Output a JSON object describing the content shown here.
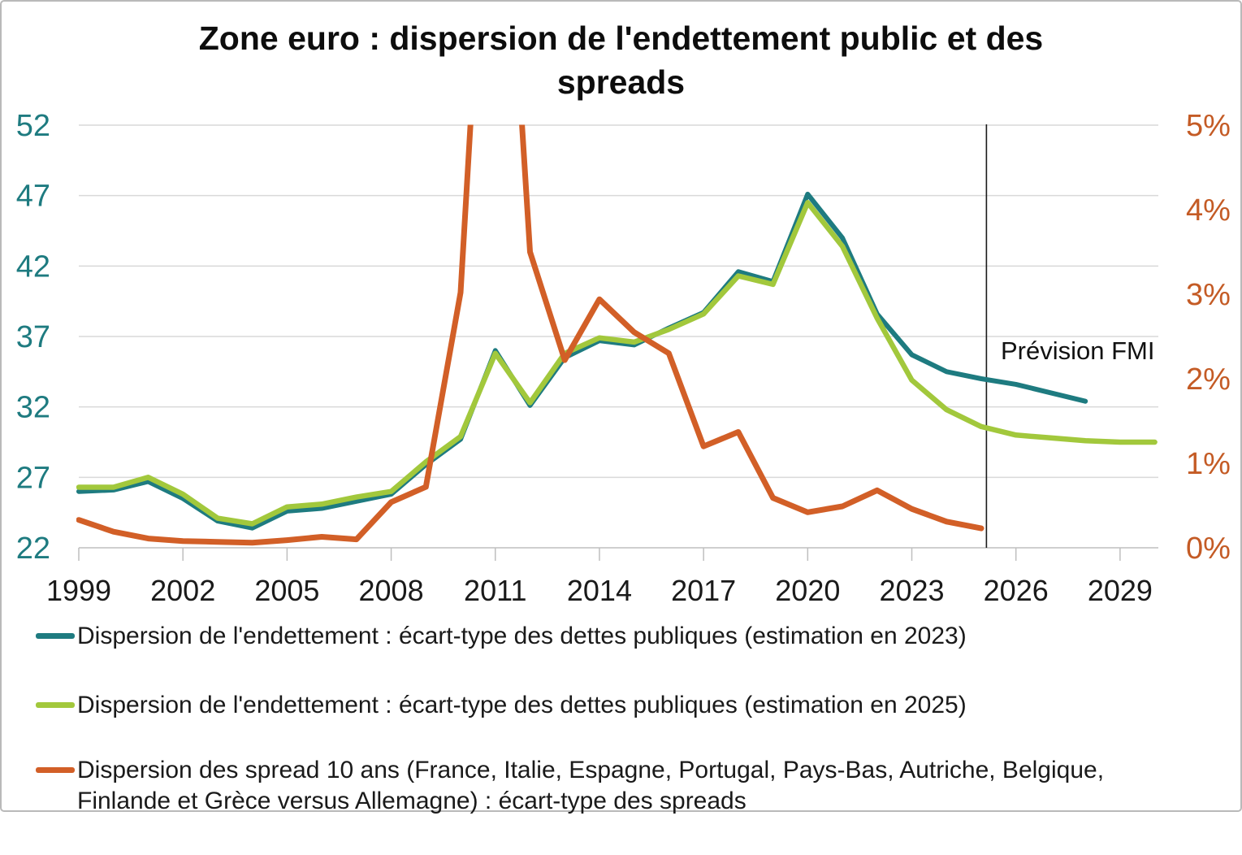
{
  "header": {
    "title_line1": "Zone euro : dispersion de l'endettement public et des",
    "title_line2": "spreads"
  },
  "annotations": {
    "prevision_label": "Prévision FMI"
  },
  "colors": {
    "debt_2023_line": "#1E7B80",
    "debt_2025_line": "#A2C83C",
    "spreads_line": "#D25F27",
    "axis_left_text": "#1E7B80",
    "axis_right_text": "#C45B25",
    "x_axis_text": "#1a1a1a",
    "gridline": "#D9D9D9",
    "axis_line": "#BFBFBF",
    "forecast_divider": "#1a1a1a"
  },
  "chart_data": {
    "type": "line",
    "title": "Zone euro : dispersion de l'endettement public et des spreads",
    "x_axis": {
      "ticks": [
        1999,
        2002,
        2005,
        2008,
        2011,
        2014,
        2017,
        2020,
        2023,
        2026,
        2029
      ],
      "range": [
        1999,
        2030.1
      ]
    },
    "left_axis": {
      "ticks": [
        22,
        27,
        32,
        37,
        42,
        47,
        52
      ],
      "range": [
        22,
        52
      ]
    },
    "right_axis": {
      "tick_labels": [
        "0%",
        "1%",
        "2%",
        "3%",
        "4%",
        "5%"
      ],
      "tick_values": [
        0,
        1,
        2,
        3,
        4,
        5
      ],
      "range": [
        0,
        5
      ]
    },
    "forecast_divider_year": 2025.15,
    "series": [
      {
        "name": "Dispersion de l'endettement : écart-type des dettes publiques (estimation en 2023)",
        "axis": "left",
        "color_key": "debt_2023_line",
        "stroke_width": 6,
        "x_start": 1999,
        "values": [
          26.0,
          26.1,
          26.7,
          25.5,
          23.9,
          23.4,
          24.6,
          24.8,
          25.3,
          25.8,
          27.9,
          29.7,
          36.0,
          32.1,
          35.5,
          36.7,
          36.4,
          37.6,
          38.7,
          41.6,
          40.9,
          47.1,
          44.0,
          38.6,
          35.7,
          34.5,
          34.0,
          33.6,
          33.0,
          32.4
        ]
      },
      {
        "name": "Dispersion de l'endettement : écart-type des dettes publiques (estimation en 2025)",
        "axis": "left",
        "color_key": "debt_2025_line",
        "stroke_width": 6.5,
        "x_start": 1999,
        "values": [
          26.3,
          26.3,
          27.0,
          25.8,
          24.1,
          23.7,
          24.9,
          25.1,
          25.6,
          26.0,
          28.1,
          29.9,
          35.8,
          32.3,
          35.8,
          36.9,
          36.6,
          37.5,
          38.6,
          41.3,
          40.7,
          46.5,
          43.4,
          38.3,
          33.9,
          31.8,
          30.6,
          30.0,
          29.8,
          29.6,
          29.5,
          29.5
        ]
      },
      {
        "name": "Dispersion des spread 10 ans (France, Italie, Espagne, Portugal, Pays-Bas, Autriche, Belgique, Finlande et Grèce versus Allemagne) : écart-type des spreads",
        "axis": "right",
        "color_key": "spreads_line",
        "stroke_width": 7,
        "x_start": 1999,
        "values": [
          0.33,
          0.19,
          0.11,
          0.08,
          0.07,
          0.06,
          0.09,
          0.13,
          0.1,
          0.54,
          0.72,
          3.02,
          10.0,
          3.5,
          2.22,
          2.94,
          2.55,
          2.3,
          1.2,
          1.37,
          0.59,
          0.42,
          0.49,
          0.68,
          0.46,
          0.31,
          0.23
        ]
      }
    ]
  },
  "legend": [
    {
      "color_key": "debt_2023_line",
      "lines": [
        "Dispersion de l'endettement : écart-type des dettes publiques (estimation en 2023)"
      ]
    },
    {
      "color_key": "debt_2025_line",
      "lines": [
        "Dispersion de l'endettement : écart-type des dettes publiques (estimation en 2025)"
      ]
    },
    {
      "color_key": "spreads_line",
      "lines": [
        "Dispersion des spread 10 ans (France, Italie, Espagne, Portugal, Pays-Bas, Autriche, Belgique,",
        "Finlande et Grèce versus Allemagne) : écart-type des spreads"
      ]
    }
  ]
}
